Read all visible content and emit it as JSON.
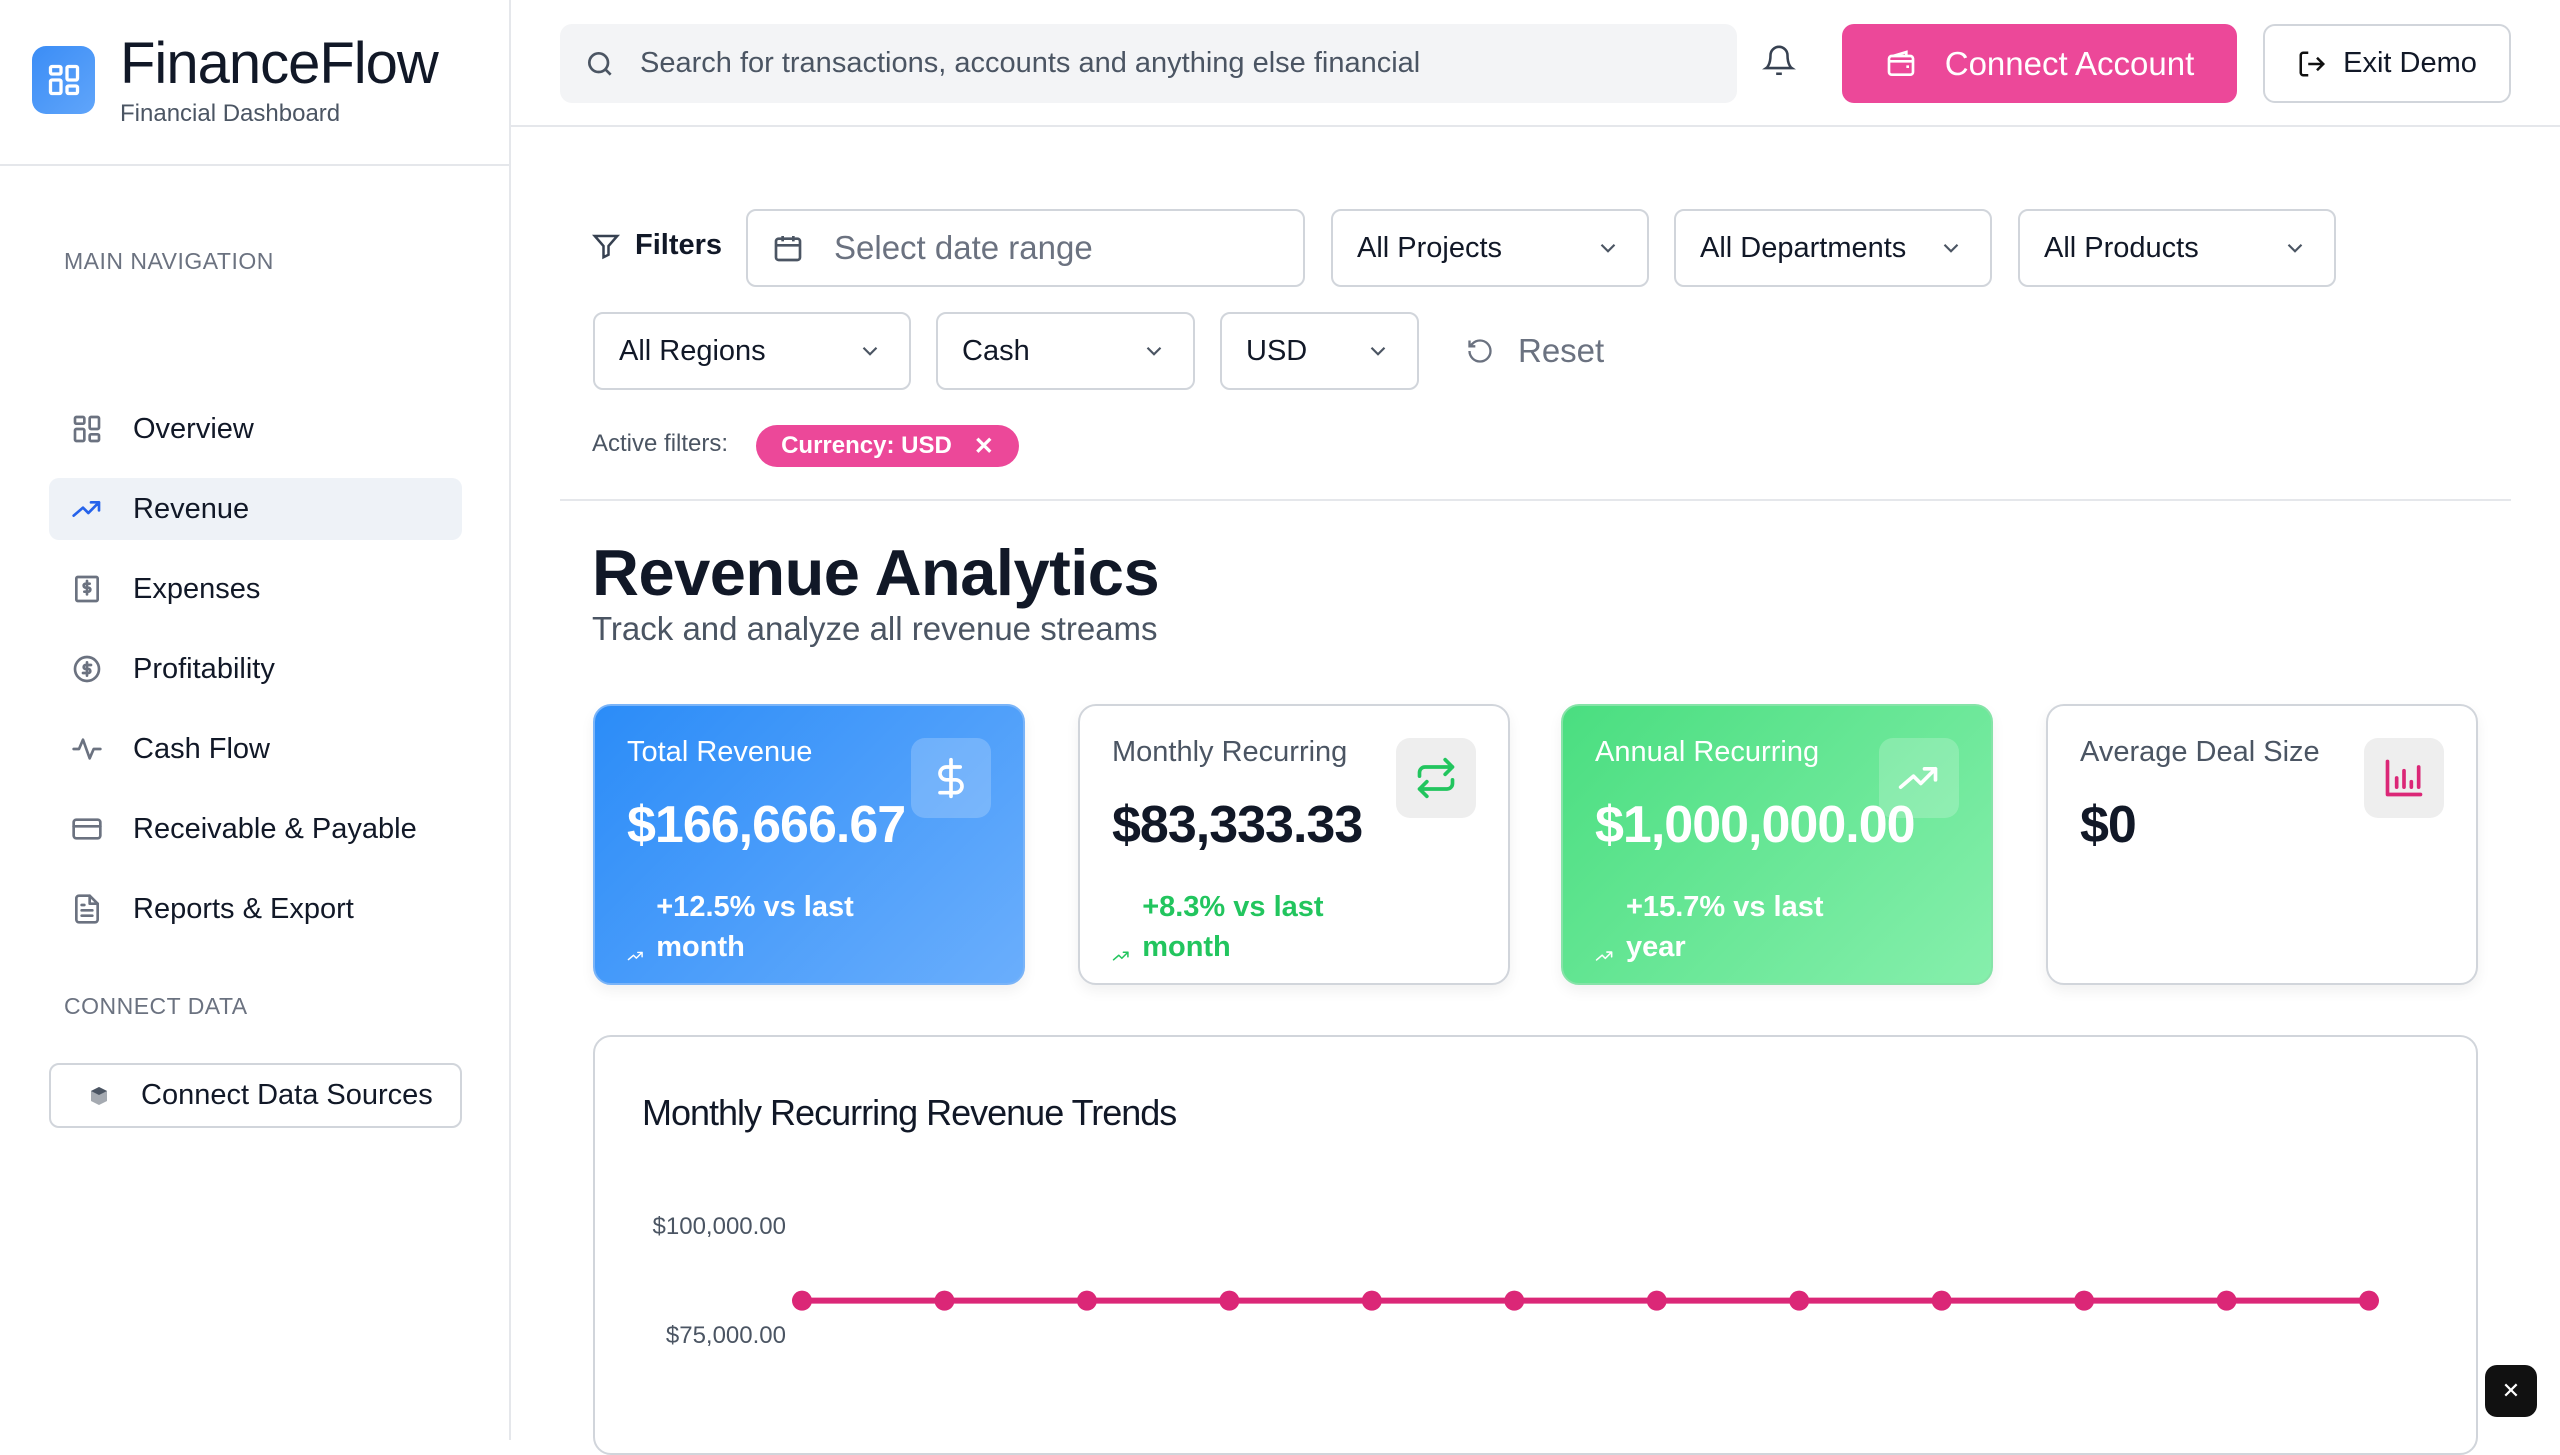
{
  "app": {
    "title": "FinanceFlow",
    "subtitle": "Financial Dashboard"
  },
  "sidebar": {
    "section_main": "MAIN NAVIGATION",
    "items": [
      {
        "label": "Overview",
        "icon": "grid-icon"
      },
      {
        "label": "Revenue",
        "icon": "trending-up-icon",
        "active": true
      },
      {
        "label": "Expenses",
        "icon": "receipt-dollar-icon"
      },
      {
        "label": "Profitability",
        "icon": "dollar-circle-icon"
      },
      {
        "label": "Cash Flow",
        "icon": "activity-icon"
      },
      {
        "label": "Receivable & Payable",
        "icon": "credit-card-icon"
      },
      {
        "label": "Reports & Export",
        "icon": "file-text-icon"
      }
    ],
    "section_connect": "CONNECT DATA",
    "connect_button": "Connect Data Sources"
  },
  "header": {
    "search_placeholder": "Search for transactions, accounts and anything else financial",
    "connect_account": "Connect Account",
    "exit_demo": "Exit Demo"
  },
  "filters": {
    "label": "Filters",
    "date_placeholder": "Select date range",
    "projects": "All Projects",
    "departments": "All Departments",
    "products": "All Products",
    "regions": "All Regions",
    "basis": "Cash",
    "currency": "USD",
    "reset": "Reset",
    "active_label": "Active filters:",
    "active_chip": "Currency: USD"
  },
  "page": {
    "title": "Revenue Analytics",
    "subtitle": "Track and analyze all revenue streams"
  },
  "cards": [
    {
      "label": "Total Revenue",
      "value": "$166,666.67",
      "change": "+12.5% vs last month",
      "icon": "dollar-icon"
    },
    {
      "label": "Monthly Recurring",
      "value": "$83,333.33",
      "change": "+8.3% vs last month",
      "icon": "repeat-icon"
    },
    {
      "label": "Annual Recurring",
      "value": "$1,000,000.00",
      "change": "+15.7% vs last year",
      "icon": "trending-up-icon"
    },
    {
      "label": "Average Deal Size",
      "value": "$0",
      "change": "",
      "icon": "bar-chart-icon"
    }
  ],
  "colors": {
    "accent": "#ec4899",
    "blue": "#3b8df6",
    "green": "#4ade80",
    "line": "#db2777"
  },
  "chart_data": {
    "type": "line",
    "title": "Monthly Recurring Revenue Trends",
    "yticks": [
      "$100,000.00",
      "$75,000.00"
    ],
    "ytick_values": [
      100000,
      75000
    ],
    "series": [
      {
        "values": [
          83333.33,
          83333.33,
          83333.33,
          83333.33,
          83333.33,
          83333.33,
          83333.33,
          83333.33,
          83333.33,
          83333.33,
          83333.33,
          83333.33
        ]
      }
    ]
  }
}
